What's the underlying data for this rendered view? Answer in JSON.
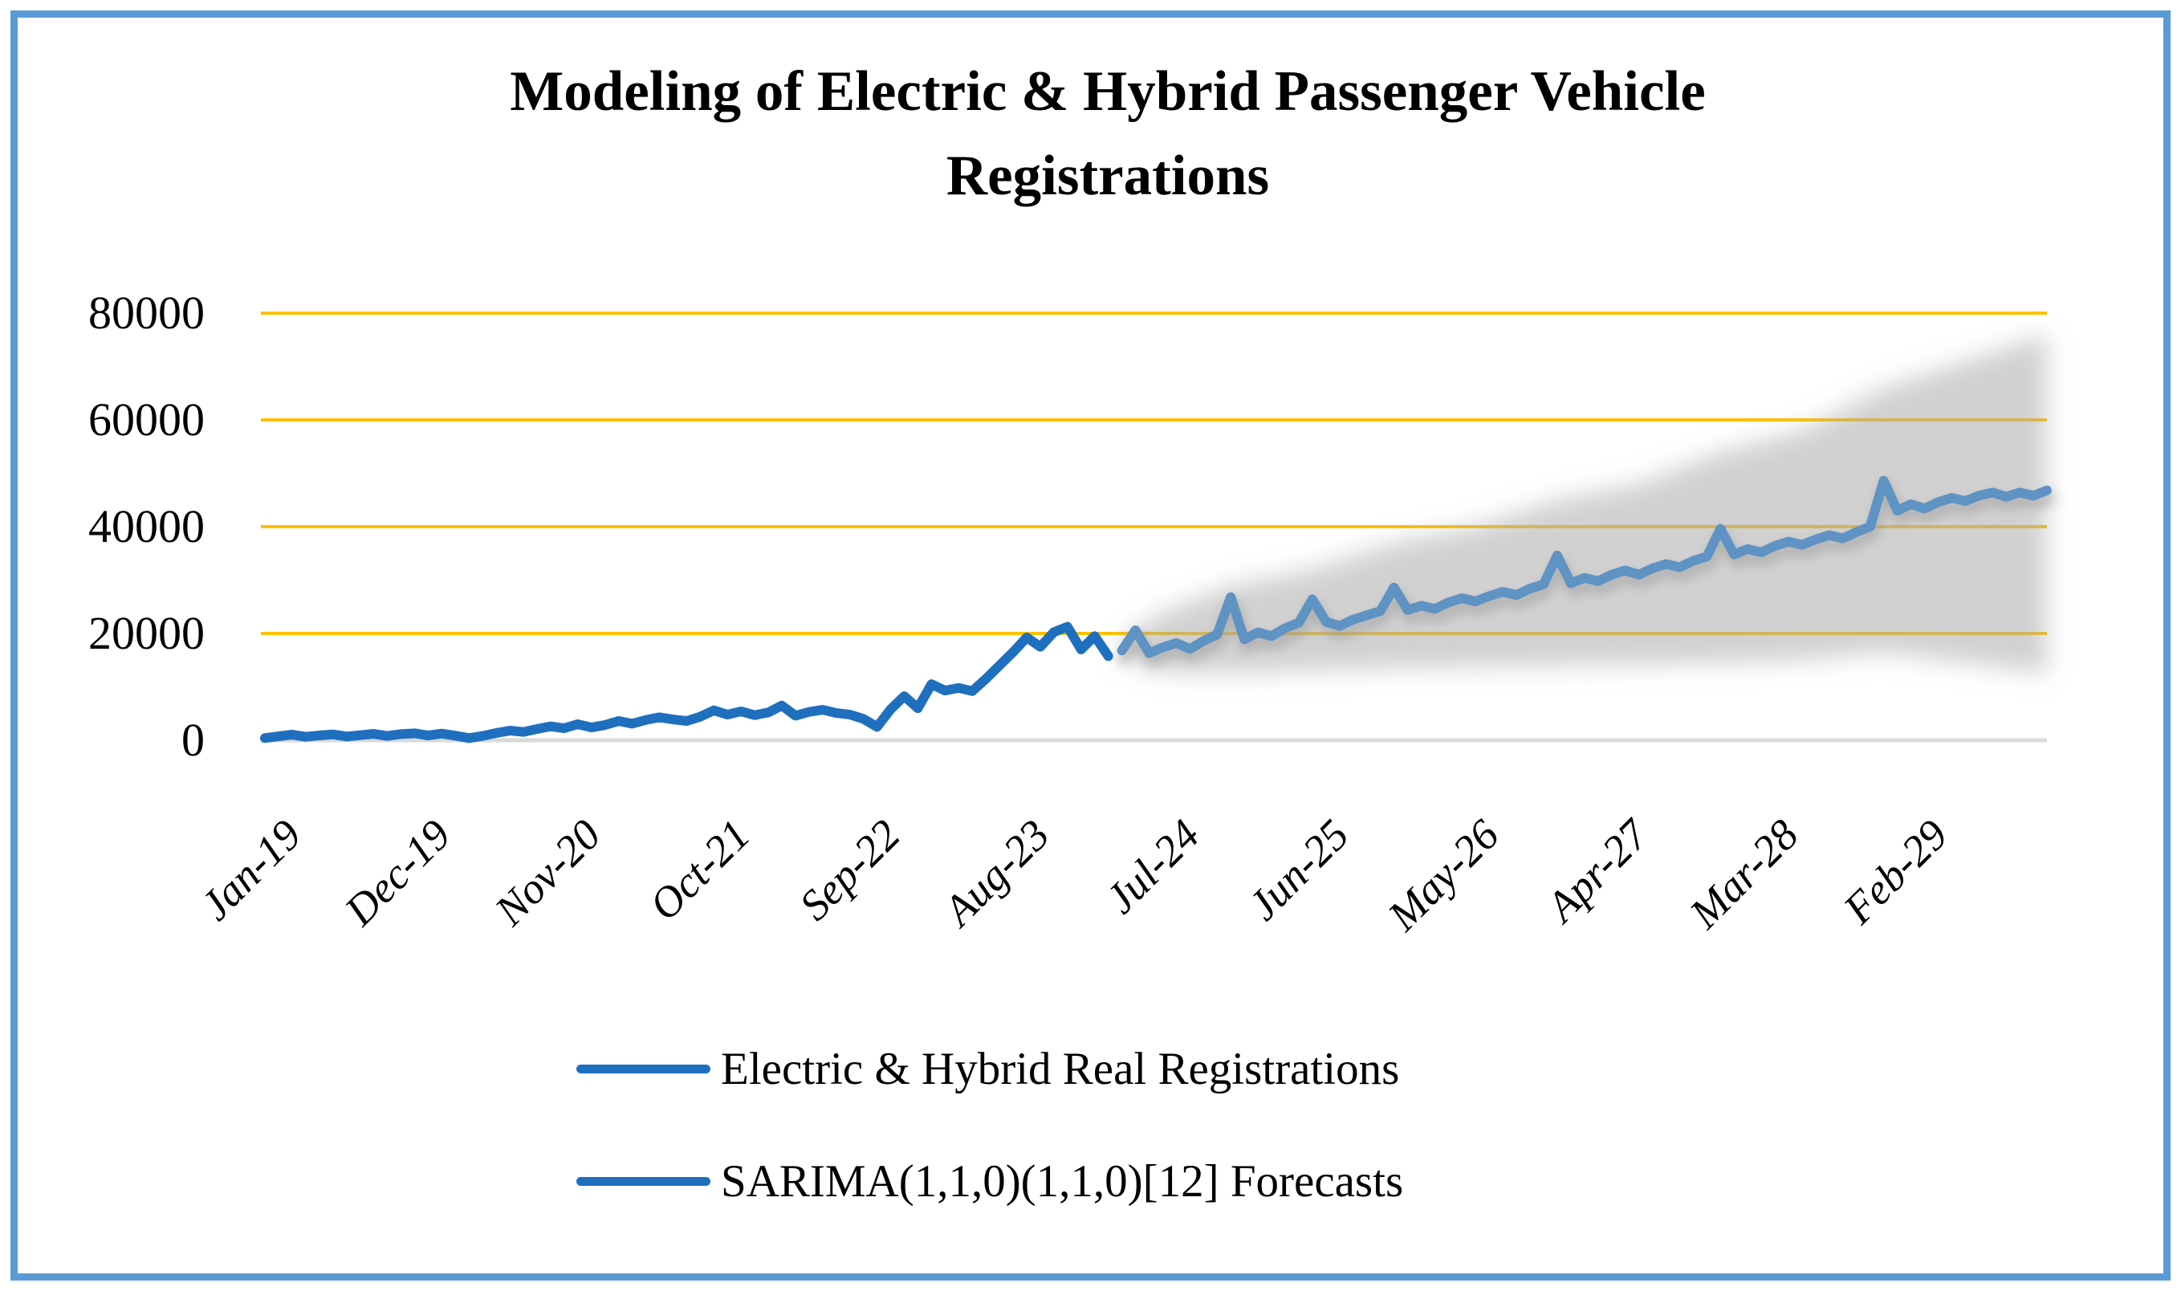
{
  "title": "Modeling of Electric & Hybrid Passenger Vehicle Registrations",
  "y_axis": {
    "ticks": [
      "80000",
      "60000",
      "40000",
      "20000",
      "0"
    ],
    "min": 0,
    "max": 80000,
    "gridline_color": "#FFC000",
    "axis_line_color": "#D9D9D9"
  },
  "x_axis": {
    "tick_labels": [
      "Jan-19",
      "Dec-19",
      "Nov-20",
      "Oct-21",
      "Sep-22",
      "Aug-23",
      "Jul-24",
      "Jun-25",
      "May-26",
      "Apr-27",
      "Mar-28",
      "Feb-29"
    ],
    "label_interval_months": 11
  },
  "legend": {
    "items": [
      {
        "label": "Electric & Hybrid Real Registrations",
        "color": "#1F6FBF"
      },
      {
        "label": "SARIMA(1,1,0)(1,1,0)[12] Forecasts",
        "color": "#1F6FBF"
      }
    ]
  },
  "colors": {
    "frame_border": "#5B9BD5",
    "real_line": "#1F6FBF",
    "forecast_line": "#5E93C4",
    "gridline": "#FFC000",
    "axis_line": "#D9D9D9",
    "confidence_band": "#ACACAC",
    "background": "#FFFFFF"
  },
  "chart_data": {
    "type": "line",
    "title": "Modeling of Electric & Hybrid Passenger Vehicle Registrations",
    "xlabel": "",
    "ylabel": "",
    "ylim": [
      0,
      80000
    ],
    "x_start": "Jan-19",
    "x_end": "Dec-29",
    "months_total": 132,
    "grid": "horizontal-only",
    "legend_position": "bottom",
    "series": [
      {
        "name": "Electric & Hybrid Real Registrations",
        "start_index": 0,
        "start_month": "Jan-19",
        "end_month": "Mar-24",
        "values": [
          400,
          750,
          1050,
          650,
          900,
          1100,
          700,
          950,
          1200,
          800,
          1150,
          1300,
          900,
          1250,
          850,
          400,
          800,
          1350,
          1800,
          1550,
          2100,
          2600,
          2250,
          3000,
          2400,
          2850,
          3600,
          3100,
          3800,
          4300,
          3900,
          3600,
          4400,
          5600,
          4800,
          5400,
          4700,
          5200,
          6500,
          4600,
          5300,
          5700,
          5100,
          4800,
          4000,
          2500,
          5800,
          8250,
          6000,
          10500,
          9300,
          9800,
          9200,
          11500,
          14000,
          16500,
          19250,
          17500,
          20250,
          21250,
          17000,
          19500,
          15750
        ]
      },
      {
        "name": "SARIMA(1,1,0)(1,1,0)[12] Forecasts",
        "start_index": 63,
        "start_month": "Apr-24",
        "end_month": "Dec-29",
        "values": [
          16800,
          20600,
          16300,
          17400,
          18200,
          17100,
          18600,
          19800,
          26800,
          18900,
          20200,
          19500,
          21000,
          22000,
          26400,
          22200,
          21400,
          22600,
          23400,
          24200,
          28600,
          24400,
          25200,
          24600,
          25800,
          26600,
          26000,
          27000,
          27800,
          27200,
          28400,
          29200,
          34600,
          29400,
          30400,
          29800,
          31000,
          31800,
          31000,
          32200,
          33000,
          32400,
          33600,
          34400,
          39600,
          34800,
          35800,
          35200,
          36400,
          37200,
          36600,
          37600,
          38400,
          37800,
          39000,
          40000,
          48600,
          43000,
          44200,
          43400,
          44600,
          45400,
          44800,
          45800,
          46400,
          45600,
          46400,
          45800,
          46800
        ]
      }
    ],
    "confidence_band": [
      {
        "m": 63,
        "lo": 15200,
        "hi": 18500
      },
      {
        "m": 66,
        "lo": 12800,
        "hi": 24000
      },
      {
        "m": 71,
        "lo": 12500,
        "hi": 29000
      },
      {
        "m": 77,
        "lo": 13000,
        "hi": 32000
      },
      {
        "m": 83,
        "lo": 13500,
        "hi": 37000
      },
      {
        "m": 89,
        "lo": 13800,
        "hi": 40000
      },
      {
        "m": 95,
        "lo": 14000,
        "hi": 45000
      },
      {
        "m": 101,
        "lo": 14200,
        "hi": 48000
      },
      {
        "m": 107,
        "lo": 14500,
        "hi": 54000
      },
      {
        "m": 113,
        "lo": 15000,
        "hi": 58000
      },
      {
        "m": 119,
        "lo": 16500,
        "hi": 66000
      },
      {
        "m": 125,
        "lo": 14500,
        "hi": 71000
      },
      {
        "m": 131,
        "lo": 12500,
        "hi": 76000
      }
    ]
  }
}
